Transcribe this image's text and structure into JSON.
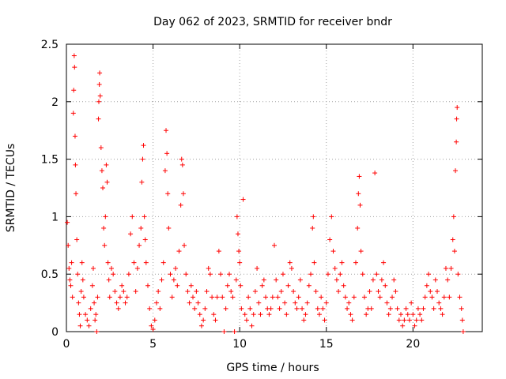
{
  "chart_data": {
    "type": "scatter",
    "title": "Day 062 of 2023, SRMTID for receiver bndr",
    "xlabel": "GPS time / hours",
    "ylabel": "SRMTID / TECUs",
    "xlim": [
      0,
      24
    ],
    "ylim": [
      0,
      2.5
    ],
    "xticks": [
      0,
      5,
      10,
      15,
      20
    ],
    "yticks": [
      0,
      0.5,
      1,
      1.5,
      2,
      2.5
    ],
    "grid": true,
    "marker": "+",
    "color": "#ff0000",
    "series": [
      {
        "name": "SRMTID",
        "points": [
          [
            0.05,
            0.95
          ],
          [
            0.1,
            0.75
          ],
          [
            0.15,
            0.55
          ],
          [
            0.2,
            0.45
          ],
          [
            0.25,
            0.4
          ],
          [
            0.3,
            0.6
          ],
          [
            0.35,
            0.3
          ],
          [
            0.4,
            1.9
          ],
          [
            0.42,
            2.1
          ],
          [
            0.45,
            2.4
          ],
          [
            0.47,
            2.3
          ],
          [
            0.5,
            1.7
          ],
          [
            0.52,
            1.45
          ],
          [
            0.55,
            1.2
          ],
          [
            0.6,
            0.8
          ],
          [
            0.65,
            0.5
          ],
          [
            0.7,
            0.25
          ],
          [
            0.75,
            0.15
          ],
          [
            0.8,
            0.05
          ],
          [
            0.85,
            0.35
          ],
          [
            0.9,
            0.6
          ],
          [
            0.95,
            0.45
          ],
          [
            1.0,
            0.3
          ],
          [
            1.1,
            0.15
          ],
          [
            1.2,
            0.1
          ],
          [
            1.3,
            0.05
          ],
          [
            1.4,
            0.2
          ],
          [
            1.5,
            0.4
          ],
          [
            1.55,
            0.55
          ],
          [
            1.6,
            0.25
          ],
          [
            1.65,
            0.1
          ],
          [
            1.7,
            0.15
          ],
          [
            1.75,
            0.0
          ],
          [
            1.8,
            0.3
          ],
          [
            1.85,
            1.85
          ],
          [
            1.87,
            2.0
          ],
          [
            1.9,
            2.15
          ],
          [
            1.92,
            2.25
          ],
          [
            1.95,
            2.05
          ],
          [
            2.0,
            1.6
          ],
          [
            2.05,
            1.4
          ],
          [
            2.1,
            1.25
          ],
          [
            2.15,
            0.9
          ],
          [
            2.2,
            0.75
          ],
          [
            2.25,
            1.0
          ],
          [
            2.3,
            1.45
          ],
          [
            2.35,
            1.3
          ],
          [
            2.4,
            0.6
          ],
          [
            2.45,
            0.45
          ],
          [
            2.5,
            0.3
          ],
          [
            2.6,
            0.55
          ],
          [
            2.7,
            0.5
          ],
          [
            2.8,
            0.35
          ],
          [
            2.9,
            0.25
          ],
          [
            3.0,
            0.2
          ],
          [
            3.1,
            0.3
          ],
          [
            3.2,
            0.4
          ],
          [
            3.3,
            0.35
          ],
          [
            3.4,
            0.25
          ],
          [
            3.5,
            0.3
          ],
          [
            3.6,
            0.5
          ],
          [
            3.7,
            0.85
          ],
          [
            3.8,
            1.0
          ],
          [
            3.9,
            0.6
          ],
          [
            4.0,
            0.35
          ],
          [
            4.1,
            0.55
          ],
          [
            4.2,
            0.75
          ],
          [
            4.3,
            0.9
          ],
          [
            4.35,
            1.3
          ],
          [
            4.4,
            1.5
          ],
          [
            4.45,
            1.62
          ],
          [
            4.5,
            1.0
          ],
          [
            4.55,
            0.8
          ],
          [
            4.6,
            0.6
          ],
          [
            4.7,
            0.4
          ],
          [
            4.8,
            0.2
          ],
          [
            4.9,
            0.05
          ],
          [
            5.0,
            0.02
          ],
          [
            5.1,
            0.1
          ],
          [
            5.2,
            0.25
          ],
          [
            5.3,
            0.35
          ],
          [
            5.4,
            0.2
          ],
          [
            5.5,
            0.45
          ],
          [
            5.6,
            0.6
          ],
          [
            5.7,
            1.4
          ],
          [
            5.75,
            1.75
          ],
          [
            5.8,
            1.55
          ],
          [
            5.85,
            1.2
          ],
          [
            5.9,
            0.9
          ],
          [
            6.0,
            0.5
          ],
          [
            6.1,
            0.3
          ],
          [
            6.2,
            0.45
          ],
          [
            6.3,
            0.55
          ],
          [
            6.4,
            0.4
          ],
          [
            6.5,
            0.7
          ],
          [
            6.6,
            1.1
          ],
          [
            6.65,
            1.5
          ],
          [
            6.7,
            1.45
          ],
          [
            6.75,
            1.2
          ],
          [
            6.8,
            0.75
          ],
          [
            6.9,
            0.5
          ],
          [
            7.0,
            0.35
          ],
          [
            7.1,
            0.25
          ],
          [
            7.2,
            0.4
          ],
          [
            7.3,
            0.3
          ],
          [
            7.4,
            0.2
          ],
          [
            7.5,
            0.35
          ],
          [
            7.6,
            0.25
          ],
          [
            7.7,
            0.15
          ],
          [
            7.8,
            0.05
          ],
          [
            7.9,
            0.1
          ],
          [
            8.0,
            0.2
          ],
          [
            8.1,
            0.35
          ],
          [
            8.2,
            0.55
          ],
          [
            8.3,
            0.5
          ],
          [
            8.4,
            0.3
          ],
          [
            8.5,
            0.15
          ],
          [
            8.6,
            0.1
          ],
          [
            8.7,
            0.3
          ],
          [
            8.8,
            0.7
          ],
          [
            8.9,
            0.5
          ],
          [
            9.0,
            0.3
          ],
          [
            9.1,
            0.0
          ],
          [
            9.2,
            0.2
          ],
          [
            9.3,
            0.4
          ],
          [
            9.4,
            0.5
          ],
          [
            9.5,
            0.35
          ],
          [
            9.6,
            0.3
          ],
          [
            9.7,
            0.0
          ],
          [
            9.8,
            0.45
          ],
          [
            9.85,
            1.0
          ],
          [
            9.9,
            0.85
          ],
          [
            9.95,
            0.7
          ],
          [
            10.0,
            0.6
          ],
          [
            10.05,
            0.4
          ],
          [
            10.1,
            0.2
          ],
          [
            10.2,
            1.15
          ],
          [
            10.3,
            0.15
          ],
          [
            10.4,
            0.1
          ],
          [
            10.5,
            0.3
          ],
          [
            10.6,
            0.2
          ],
          [
            10.7,
            0.05
          ],
          [
            10.8,
            0.15
          ],
          [
            10.9,
            0.35
          ],
          [
            11.0,
            0.55
          ],
          [
            11.1,
            0.25
          ],
          [
            11.2,
            0.15
          ],
          [
            11.3,
            0.4
          ],
          [
            11.4,
            0.45
          ],
          [
            11.5,
            0.3
          ],
          [
            11.6,
            0.2
          ],
          [
            11.7,
            0.15
          ],
          [
            11.8,
            0.2
          ],
          [
            11.9,
            0.3
          ],
          [
            12.0,
            0.75
          ],
          [
            12.1,
            0.45
          ],
          [
            12.2,
            0.3
          ],
          [
            12.3,
            0.2
          ],
          [
            12.4,
            0.35
          ],
          [
            12.5,
            0.5
          ],
          [
            12.6,
            0.25
          ],
          [
            12.7,
            0.15
          ],
          [
            12.8,
            0.4
          ],
          [
            12.9,
            0.6
          ],
          [
            13.0,
            0.55
          ],
          [
            13.1,
            0.35
          ],
          [
            13.2,
            0.25
          ],
          [
            13.3,
            0.2
          ],
          [
            13.4,
            0.3
          ],
          [
            13.5,
            0.45
          ],
          [
            13.6,
            0.2
          ],
          [
            13.7,
            0.1
          ],
          [
            13.8,
            0.15
          ],
          [
            13.9,
            0.25
          ],
          [
            14.0,
            0.4
          ],
          [
            14.1,
            0.5
          ],
          [
            14.2,
            0.9
          ],
          [
            14.25,
            1.0
          ],
          [
            14.3,
            0.6
          ],
          [
            14.4,
            0.35
          ],
          [
            14.5,
            0.2
          ],
          [
            14.6,
            0.15
          ],
          [
            14.7,
            0.3
          ],
          [
            14.8,
            0.2
          ],
          [
            14.9,
            0.1
          ],
          [
            15.0,
            0.25
          ],
          [
            15.1,
            0.5
          ],
          [
            15.2,
            0.8
          ],
          [
            15.3,
            1.0
          ],
          [
            15.4,
            0.7
          ],
          [
            15.5,
            0.55
          ],
          [
            15.6,
            0.45
          ],
          [
            15.7,
            0.35
          ],
          [
            15.8,
            0.5
          ],
          [
            15.9,
            0.6
          ],
          [
            16.0,
            0.4
          ],
          [
            16.1,
            0.3
          ],
          [
            16.2,
            0.2
          ],
          [
            16.3,
            0.25
          ],
          [
            16.4,
            0.15
          ],
          [
            16.5,
            0.1
          ],
          [
            16.6,
            0.3
          ],
          [
            16.7,
            0.6
          ],
          [
            16.8,
            0.9
          ],
          [
            16.85,
            1.2
          ],
          [
            16.9,
            1.35
          ],
          [
            16.95,
            1.1
          ],
          [
            17.0,
            0.7
          ],
          [
            17.1,
            0.5
          ],
          [
            17.2,
            0.3
          ],
          [
            17.3,
            0.15
          ],
          [
            17.4,
            0.2
          ],
          [
            17.5,
            0.35
          ],
          [
            17.6,
            0.2
          ],
          [
            17.7,
            0.45
          ],
          [
            17.8,
            1.38
          ],
          [
            17.9,
            0.5
          ],
          [
            18.0,
            0.35
          ],
          [
            18.1,
            0.3
          ],
          [
            18.2,
            0.45
          ],
          [
            18.3,
            0.6
          ],
          [
            18.4,
            0.4
          ],
          [
            18.5,
            0.25
          ],
          [
            18.6,
            0.15
          ],
          [
            18.7,
            0.2
          ],
          [
            18.8,
            0.3
          ],
          [
            18.9,
            0.45
          ],
          [
            19.0,
            0.35
          ],
          [
            19.1,
            0.2
          ],
          [
            19.2,
            0.1
          ],
          [
            19.3,
            0.15
          ],
          [
            19.4,
            0.05
          ],
          [
            19.5,
            0.1
          ],
          [
            19.6,
            0.2
          ],
          [
            19.7,
            0.15
          ],
          [
            19.8,
            0.1
          ],
          [
            19.9,
            0.25
          ],
          [
            20.0,
            0.15
          ],
          [
            20.1,
            0.05
          ],
          [
            20.2,
            0.1
          ],
          [
            20.3,
            0.2
          ],
          [
            20.4,
            0.15
          ],
          [
            20.5,
            0.1
          ],
          [
            20.6,
            0.2
          ],
          [
            20.7,
            0.3
          ],
          [
            20.8,
            0.4
          ],
          [
            20.9,
            0.5
          ],
          [
            21.0,
            0.35
          ],
          [
            21.1,
            0.3
          ],
          [
            21.2,
            0.2
          ],
          [
            21.3,
            0.45
          ],
          [
            21.4,
            0.35
          ],
          [
            21.5,
            0.25
          ],
          [
            21.6,
            0.2
          ],
          [
            21.7,
            0.15
          ],
          [
            21.8,
            0.3
          ],
          [
            21.9,
            0.55
          ],
          [
            22.0,
            0.45
          ],
          [
            22.1,
            0.3
          ],
          [
            22.2,
            0.55
          ],
          [
            22.3,
            0.8
          ],
          [
            22.35,
            1.0
          ],
          [
            22.4,
            0.7
          ],
          [
            22.45,
            1.4
          ],
          [
            22.5,
            1.65
          ],
          [
            22.52,
            1.85
          ],
          [
            22.55,
            1.95
          ],
          [
            22.6,
            0.5
          ],
          [
            22.7,
            0.3
          ],
          [
            22.8,
            0.2
          ],
          [
            22.85,
            0.1
          ],
          [
            22.9,
            0.0
          ]
        ]
      }
    ]
  }
}
